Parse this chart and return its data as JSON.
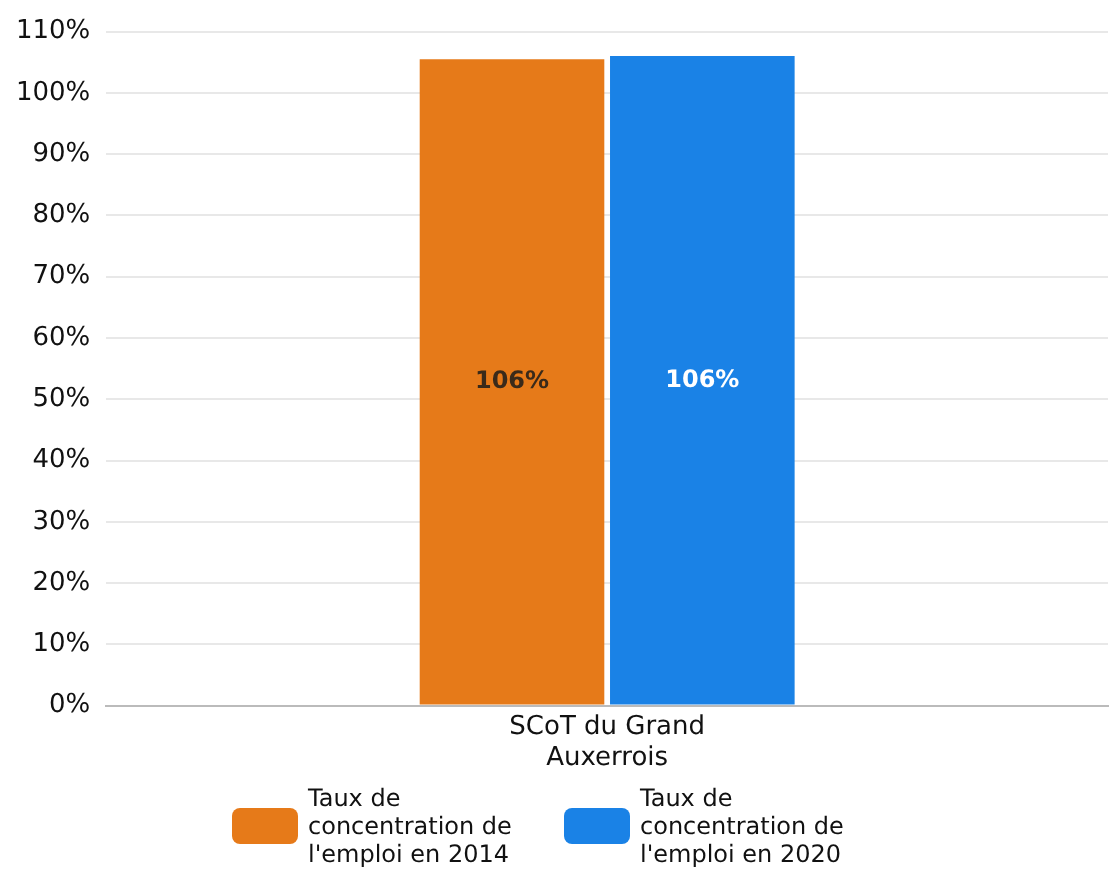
{
  "chart_data": {
    "type": "bar",
    "categories": [
      "SCoT du Grand Auxerrois"
    ],
    "series": [
      {
        "name": "Taux de concentration de l'emploi en 2014",
        "color": "#e67a19",
        "values": [
          105.5
        ],
        "value_labels": [
          "106%"
        ]
      },
      {
        "name": "Taux de concentration de l'emploi en 2020",
        "color": "#1a82e6",
        "values": [
          106
        ],
        "value_labels": [
          "106%"
        ]
      }
    ],
    "ylim": [
      0,
      110
    ],
    "yticks": [
      {
        "value": 0,
        "label": "0%"
      },
      {
        "value": 10,
        "label": "10%"
      },
      {
        "value": 20,
        "label": "20%"
      },
      {
        "value": 30,
        "label": "30%"
      },
      {
        "value": 40,
        "label": "40%"
      },
      {
        "value": 50,
        "label": "50%"
      },
      {
        "value": 60,
        "label": "60%"
      },
      {
        "value": 70,
        "label": "70%"
      },
      {
        "value": 80,
        "label": "80%"
      },
      {
        "value": 90,
        "label": "90%"
      },
      {
        "value": 100,
        "label": "100%"
      },
      {
        "value": 110,
        "label": "110%"
      }
    ],
    "grid": "y",
    "legend": "bottom"
  }
}
